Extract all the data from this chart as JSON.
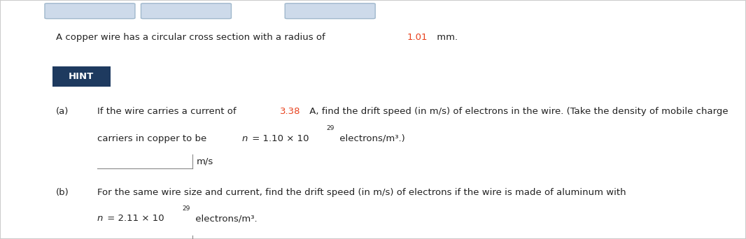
{
  "bg_color": "#f0f0f0",
  "panel_color": "#ffffff",
  "border_color": "#cccccc",
  "hint_bg": "#1e3a5f",
  "hint_text": "HINT",
  "hint_text_color": "#ffffff",
  "title_pre": "A copper wire has a circular cross section with a radius of ",
  "title_highlight": "1.01",
  "title_suffix": " mm.",
  "highlight_color": "#e8401c",
  "normal_color": "#222222",
  "part_a_label": "(a)",
  "part_a_line1_pre": "If the wire carries a current of ",
  "part_a_line1_highlight": "3.38",
  "part_a_line1_post": " A, find the drift speed (in m/s) of electrons in the wire. (Take the density of mobile charge",
  "part_a_line2_pre": "carriers in copper to be ",
  "part_a_line2_n": "n",
  "part_a_line2_mid": " = 1.10 × 10",
  "part_a_line2_sup": "29",
  "part_a_line2_post": " electrons/m³.)",
  "part_b_label": "(b)",
  "part_b_line1": "For the same wire size and current, find the drift speed (in m/s) of electrons if the wire is made of aluminum with",
  "part_b_line2_n": "n",
  "part_b_line2_mid": " = 2.11 × 10",
  "part_b_line2_sup": "29",
  "part_b_line2_post": " electrons/m³.",
  "unit": "m/s",
  "top_bar_color": "#cddaea",
  "top_bar_border": "#a0b8cc",
  "fs": 9.5
}
